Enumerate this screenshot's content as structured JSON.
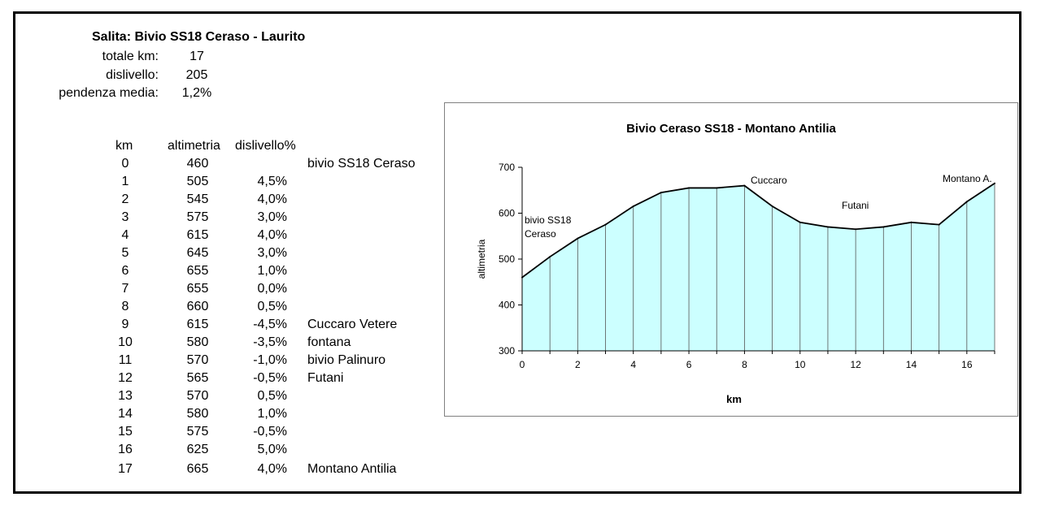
{
  "header": {
    "title": "Salita: Bivio SS18 Ceraso - Laurito",
    "summary": [
      {
        "label": "totale km:",
        "value": "17"
      },
      {
        "label": "dislivello:",
        "value": "205"
      },
      {
        "label": "pendenza media:",
        "value": "1,2%"
      }
    ]
  },
  "table": {
    "headers": [
      "km",
      "altimetria",
      "dislivello%"
    ],
    "rows": [
      {
        "km": "0",
        "alt": "460",
        "pct": "",
        "name": "bivio SS18 Ceraso"
      },
      {
        "km": "1",
        "alt": "505",
        "pct": "4,5%",
        "name": ""
      },
      {
        "km": "2",
        "alt": "545",
        "pct": "4,0%",
        "name": ""
      },
      {
        "km": "3",
        "alt": "575",
        "pct": "3,0%",
        "name": ""
      },
      {
        "km": "4",
        "alt": "615",
        "pct": "4,0%",
        "name": ""
      },
      {
        "km": "5",
        "alt": "645",
        "pct": "3,0%",
        "name": ""
      },
      {
        "km": "6",
        "alt": "655",
        "pct": "1,0%",
        "name": ""
      },
      {
        "km": "7",
        "alt": "655",
        "pct": "0,0%",
        "name": ""
      },
      {
        "km": "8",
        "alt": "660",
        "pct": "0,5%",
        "name": ""
      },
      {
        "km": "9",
        "alt": "615",
        "pct": "-4,5%",
        "name": "Cuccaro Vetere"
      },
      {
        "km": "10",
        "alt": "580",
        "pct": "-3,5%",
        "name": "fontana"
      },
      {
        "km": "11",
        "alt": "570",
        "pct": "-1,0%",
        "name": "bivio Palinuro"
      },
      {
        "km": "12",
        "alt": "565",
        "pct": "-0,5%",
        "name": "Futani"
      },
      {
        "km": "13",
        "alt": "570",
        "pct": "0,5%",
        "name": ""
      },
      {
        "km": "14",
        "alt": "580",
        "pct": "1,0%",
        "name": ""
      },
      {
        "km": "15",
        "alt": "575",
        "pct": "-0,5%",
        "name": ""
      },
      {
        "km": "16",
        "alt": "625",
        "pct": "5,0%",
        "name": ""
      },
      {
        "km": "17",
        "alt": "665",
        "pct": "4,0%",
        "name": "Montano Antilia"
      }
    ]
  },
  "chart_data": {
    "type": "area",
    "title": "Bivio Ceraso SS18 - Montano Antilia",
    "xlabel": "km",
    "ylabel": "altimetria",
    "x": [
      0,
      1,
      2,
      3,
      4,
      5,
      6,
      7,
      8,
      9,
      10,
      11,
      12,
      13,
      14,
      15,
      16,
      17
    ],
    "values": [
      460,
      505,
      545,
      575,
      615,
      645,
      655,
      655,
      660,
      615,
      580,
      570,
      565,
      570,
      580,
      575,
      625,
      665
    ],
    "xlim": [
      0,
      17
    ],
    "ylim": [
      300,
      700
    ],
    "xticks": [
      0,
      2,
      4,
      6,
      8,
      10,
      12,
      14,
      16
    ],
    "yticks": [
      300,
      400,
      500,
      600,
      700
    ],
    "annotations": [
      {
        "lines": [
          "bivio SS18",
          "Ceraso"
        ],
        "x": 0,
        "y": 600
      },
      {
        "lines": [
          "Cuccaro"
        ],
        "x": 8,
        "y": 660
      },
      {
        "lines": [
          "Futani"
        ],
        "x": 12,
        "y": 620
      },
      {
        "lines": [
          "Montano A."
        ],
        "x": 17,
        "y": 665
      }
    ],
    "fill_color": "#ccffff",
    "line_color": "#000000",
    "grid": false
  }
}
